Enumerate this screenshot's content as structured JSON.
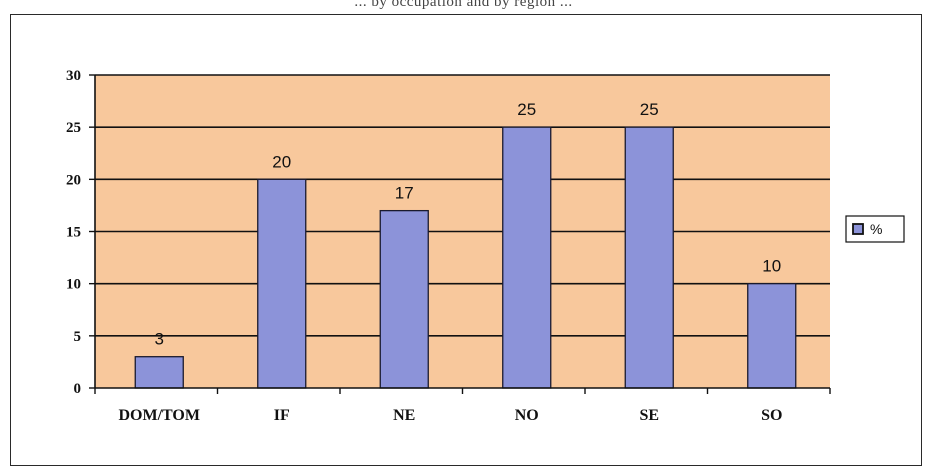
{
  "header": {
    "cut_title": "... by occupation and by region ..."
  },
  "chart_data": {
    "type": "bar",
    "title": "",
    "xlabel": "",
    "ylabel": "",
    "categories": [
      "DOM/TOM",
      "IF",
      "NE",
      "NO",
      "SE",
      "SO"
    ],
    "series": [
      {
        "name": "%",
        "values": [
          3,
          20,
          17,
          25,
          25,
          10
        ]
      }
    ],
    "data_labels": [
      "3",
      "20",
      "17",
      "25",
      "25",
      "10"
    ],
    "ylim": [
      0,
      30
    ],
    "yticks": [
      0,
      5,
      10,
      15,
      20,
      25,
      30
    ],
    "grid": true,
    "legend": "right",
    "colors": {
      "plot_bg": "#F8C89C",
      "bar_fill": "#8C93D9",
      "bar_stroke": "#1a1a2e",
      "gridline": "#111111",
      "outer_bg": "#ffffff"
    }
  }
}
